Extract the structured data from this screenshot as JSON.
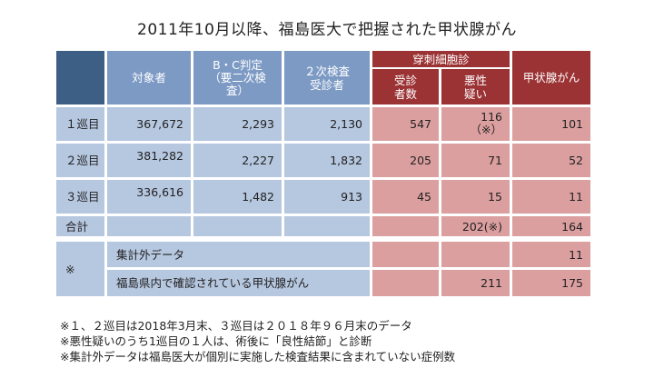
{
  "title": "2011年10月以降、福島医大で把握された甲状腺がん",
  "headers": {
    "target": "対象者",
    "bc_line1": "B・C判定",
    "bc_line2": "（要二次検",
    "bc_line3": "査）",
    "second_line1": "２次検査",
    "second_line2": "受診者",
    "fna": "穿刺細胞診",
    "fna_exam_line1": "受診",
    "fna_exam_line2": "者数",
    "malignant_line1": "悪性",
    "malignant_line2": "疑い",
    "cancer": "甲状腺がん"
  },
  "rows": [
    {
      "label": "１巡目",
      "target": "367,672",
      "bc": "2,293",
      "second": "2,130",
      "fna": "547",
      "malignant": "116",
      "malignant_note": "（※）",
      "cancer": "101"
    },
    {
      "label": "２巡目",
      "target": "381,282",
      "bc": "2,227",
      "second": "1,832",
      "fna": "205",
      "malignant": "71",
      "cancer": "52"
    },
    {
      "label": "３巡目",
      "target": "336,616",
      "bc": "1,482",
      "second": "913",
      "fna": "45",
      "malignant": "15",
      "cancer": "11"
    }
  ],
  "total": {
    "label": "合計",
    "malignant": "202(※)",
    "cancer": "164"
  },
  "extra": {
    "mark": "※",
    "outside_label": "集計外データ",
    "outside_cancer": "11",
    "pref_label": "福島県内で確認されている甲状腺がん",
    "pref_malignant": "211",
    "pref_cancer": "175"
  },
  "notes": [
    "※１、２巡目は2018年3月末、３巡目は２０１８年９６月末のデータ",
    "※悪性疑いのうち1巡目の１人は、術後に「良性結節」と診断",
    "※集計外データは福島医大が個別に実施した検査結果に含まれていない症例数"
  ],
  "colors": {
    "dark_blue": "#3d5f86",
    "mid_blue": "#7c9ac4",
    "light_blue": "#b6c7e0",
    "dark_red": "#9b3234",
    "light_red": "#dc9f9f"
  }
}
